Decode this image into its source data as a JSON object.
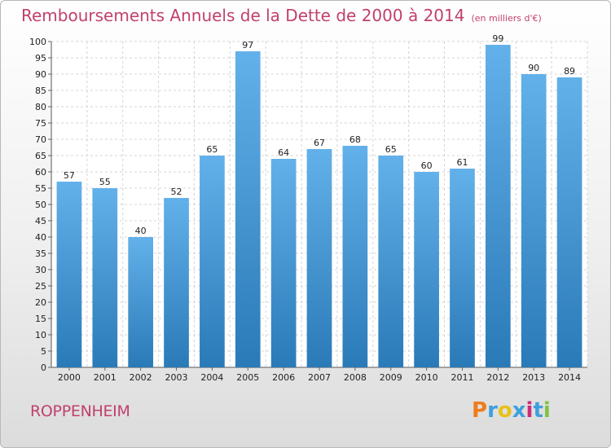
{
  "header": {
    "title": "Remboursements Annuels de la Dette de 2000 à 2014",
    "unit": "(en milliers d'€)"
  },
  "footer": {
    "location": "ROPPENHEIM",
    "brand": "Proxiti"
  },
  "colors": {
    "accent": "#c0406e",
    "bar_top": "#63b1ea",
    "bar_bottom": "#2a7ab8",
    "logo": [
      "#ef7d1a",
      "#3da0dc",
      "#e8c01b",
      "#3da0dc",
      "#cc2c7a",
      "#3da0dc",
      "#7fc242"
    ]
  },
  "chart_data": {
    "type": "bar",
    "title": "Remboursements Annuels de la Dette de 2000 à 2014",
    "subtitle": "(en milliers d'€)",
    "categories": [
      "2000",
      "2001",
      "2002",
      "2003",
      "2004",
      "2005",
      "2006",
      "2007",
      "2008",
      "2009",
      "2010",
      "2011",
      "2012",
      "2013",
      "2014"
    ],
    "values": [
      57,
      55,
      40,
      52,
      65,
      97,
      64,
      67,
      68,
      65,
      60,
      61,
      99,
      90,
      89
    ],
    "ylim": [
      0,
      100
    ],
    "ytick_step": 5,
    "grid": true,
    "xlabel": "",
    "ylabel": ""
  }
}
